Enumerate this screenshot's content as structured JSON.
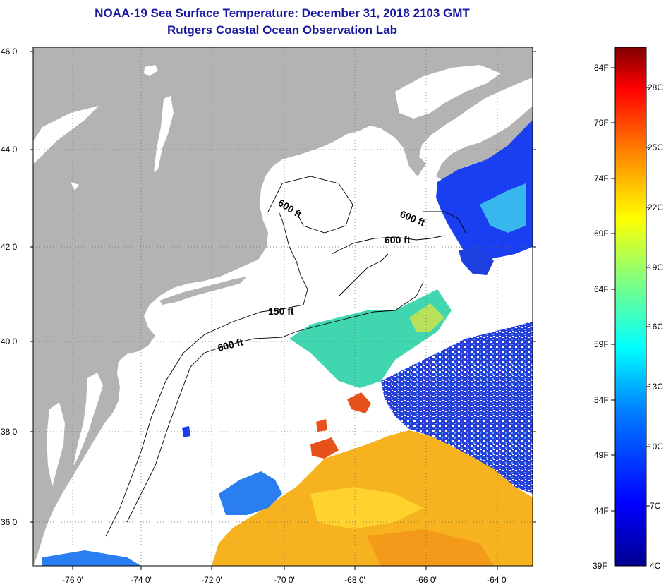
{
  "title": {
    "line1": "NOAA-19 Sea Surface Temperature:  December 31, 2018 2103 GMT",
    "line2": "Rutgers Coastal Ocean Observation Lab"
  },
  "map": {
    "lat_ticks": [
      "46 0'",
      "44 0'",
      "42 0'",
      "40 0'",
      "38 0'",
      "36 0'"
    ],
    "lon_ticks": [
      "-76 0'",
      "-74 0'",
      "-72 0'",
      "-70 0'",
      "-68 0'",
      "-66 0'",
      "-64 0'"
    ],
    "contour_labels": [
      "600 ft",
      "600 ft",
      "600 ft",
      "150 ft",
      "600 ft"
    ],
    "colors": {
      "land": "#b3b3b3",
      "water_nodata": "#ffffff"
    }
  },
  "colorbar": {
    "f_labels": [
      "84F",
      "79F",
      "74F",
      "69F",
      "64F",
      "59F",
      "54F",
      "49F",
      "44F",
      "39F"
    ],
    "c_labels": [
      "28C",
      "25C",
      "22C",
      "19C",
      "16C",
      "13C",
      "10C",
      "7C",
      "4C"
    ],
    "colors": [
      "#00008f",
      "#0000ff",
      "#0080ff",
      "#00ffff",
      "#80ff80",
      "#ffff00",
      "#ff8000",
      "#ff0000",
      "#800000"
    ]
  }
}
